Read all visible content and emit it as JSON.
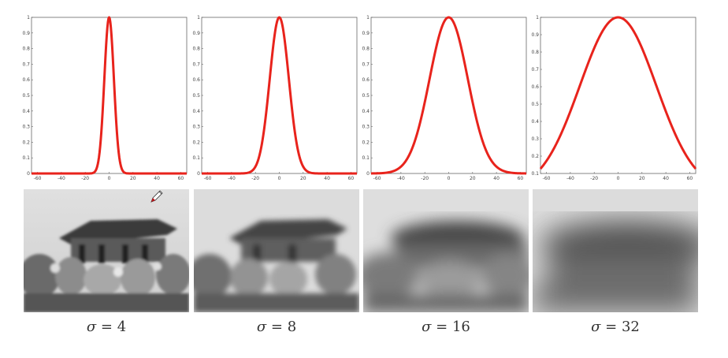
{
  "chart_data": [
    {
      "type": "line",
      "sigma": 4,
      "x_ticks": [
        -60,
        -40,
        -20,
        0,
        20,
        40,
        60
      ],
      "xlim": [
        -65,
        65
      ],
      "y_ticks": [
        "0",
        "0.1",
        "0.2",
        "0.3",
        "0.4",
        "0.5",
        "0.6",
        "0.7",
        "0.8",
        "0.9",
        "1"
      ],
      "ylim": [
        0,
        1
      ],
      "series": [
        {
          "color": "#e8231c",
          "formula": "exp(-x^2/(2*sigma^2))"
        }
      ]
    },
    {
      "type": "line",
      "sigma": 8,
      "x_ticks": [
        -60,
        -40,
        -20,
        0,
        20,
        40,
        60
      ],
      "xlim": [
        -65,
        65
      ],
      "y_ticks": [
        "0",
        "0.1",
        "0.2",
        "0.3",
        "0.4",
        "0.5",
        "0.6",
        "0.7",
        "0.8",
        "0.9",
        "1"
      ],
      "ylim": [
        0,
        1
      ],
      "series": [
        {
          "color": "#e8231c",
          "formula": "exp(-x^2/(2*sigma^2))"
        }
      ]
    },
    {
      "type": "line",
      "sigma": 16,
      "x_ticks": [
        -60,
        -40,
        -20,
        0,
        20,
        40,
        60
      ],
      "xlim": [
        -65,
        65
      ],
      "y_ticks": [
        "0",
        "0.1",
        "0.2",
        "0.3",
        "0.4",
        "0.5",
        "0.6",
        "0.7",
        "0.8",
        "0.9",
        "1"
      ],
      "ylim": [
        0,
        1
      ],
      "series": [
        {
          "color": "#e8231c",
          "formula": "exp(-x^2/(2*sigma^2))"
        }
      ]
    },
    {
      "type": "line",
      "sigma": 32,
      "x_ticks": [
        -60,
        -40,
        -20,
        0,
        20,
        40,
        60
      ],
      "xlim": [
        -65,
        65
      ],
      "y_ticks": [
        "0.1",
        "0.2",
        "0.3",
        "0.4",
        "0.5",
        "0.6",
        "0.7",
        "0.8",
        "0.9",
        "1"
      ],
      "ylim": [
        0.1,
        1
      ],
      "series": [
        {
          "color": "#e8231c",
          "formula": "exp(-x^2/(2*sigma^2))"
        }
      ]
    }
  ],
  "captions": [
    {
      "symbol": "σ",
      "equals": " = ",
      "value": "4"
    },
    {
      "symbol": "σ",
      "equals": " = ",
      "value": "8"
    },
    {
      "symbol": "σ",
      "equals": " = ",
      "value": "16"
    },
    {
      "symbol": "σ",
      "equals": " = ",
      "value": "32"
    }
  ],
  "icons": {
    "cursor": "pen-cursor-icon"
  }
}
